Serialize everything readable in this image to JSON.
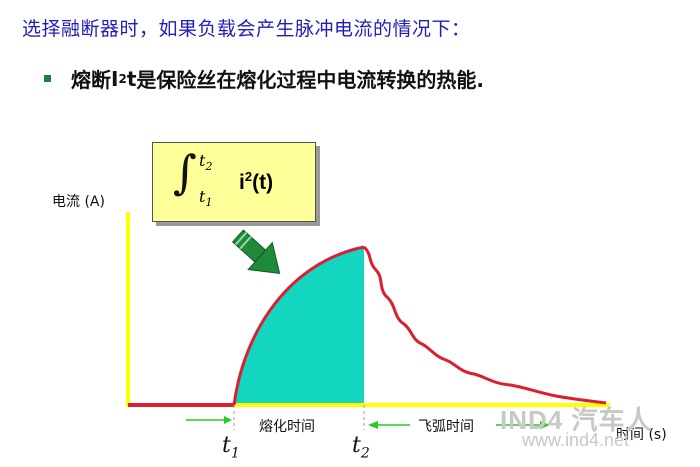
{
  "heading": "选择融断器时，如果负载会产生脉冲电流的情况下：",
  "bullet": {
    "prefix": "熔断",
    "symbol": "I",
    "power": "2",
    "var": "t",
    "suffix": "是保险丝在熔化过程中电流转换的热能."
  },
  "axes": {
    "y_label": "电流 (A)",
    "x_label": "时间 (s)"
  },
  "formula": {
    "integral": "∫",
    "upper": "t",
    "upper_sub": "2",
    "lower": "t",
    "lower_sub": "1",
    "integrand_base": "i",
    "integrand_power": "2",
    "integrand_arg": "(t)"
  },
  "time_marks": {
    "t1": "t",
    "t1_sub": "1",
    "t2": "t",
    "t2_sub": "2"
  },
  "intervals": {
    "melting": "熔化时间",
    "arcing": "飞弧时间"
  },
  "watermark": {
    "brand": "IND4 汽车人",
    "url": "www.ind4.net"
  },
  "colors": {
    "curve": "#d92030",
    "fill": "#12d6c0",
    "axis": "#ffff00",
    "arrow": "#1e8a3a",
    "interval_arrow": "#22cc22",
    "heading": "#1f1fb8"
  }
}
